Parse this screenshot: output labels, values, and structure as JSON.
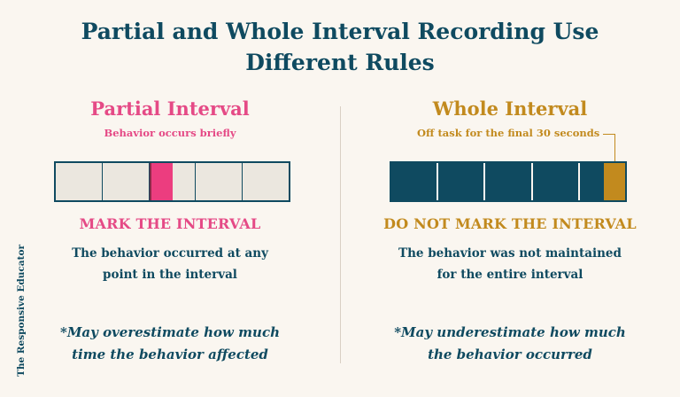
{
  "title": {
    "line1": "Partial and Whole Interval Recording Use",
    "line2": "Different Rules"
  },
  "partial": {
    "heading": "Partial Interval",
    "subheading": "Behavior occurs briefly",
    "interval_cells": 5,
    "mark_label": "MARK THE INTERVAL",
    "description_line1": "The behavior occurred at any",
    "description_line2": "point in the interval",
    "note_line1": "*May overestimate how much",
    "note_line2": "time the behavior affected"
  },
  "whole": {
    "heading": "Whole Interval",
    "subheading": "Off task for the final 30 seconds",
    "interval_cells": 5,
    "mark_label": "DO NOT MARK THE INTERVAL",
    "description_line1": "The behavior was not maintained",
    "description_line2": "for the entire interval",
    "note_line1": "*May underestimate how much",
    "note_line2": "the behavior occurred"
  },
  "colors": {
    "navy": "#0f4a60",
    "pink": "#e54a86",
    "gold": "#c28a1e",
    "background": "#faf6f0",
    "cell": "#ebe7df"
  },
  "brand": "The Responsive Educator"
}
